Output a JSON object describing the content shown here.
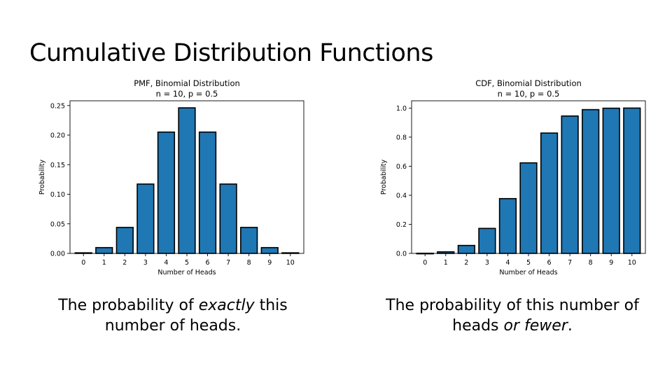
{
  "slide": {
    "title": "Cumulative Distribution Functions"
  },
  "captions": {
    "pmf": {
      "before": "The probability of ",
      "emphasis": "exactly",
      "after": " this number of heads."
    },
    "cdf": {
      "before": "The probability of this number of heads ",
      "emphasis": "or fewer",
      "after": "."
    }
  },
  "colors": {
    "bar": "#1f77b4",
    "edge": "#000000"
  },
  "chart_data": [
    {
      "id": "pmf",
      "type": "bar",
      "title": "PMF, Binomial Distribution",
      "subtitle": "n = 10, p = 0.5",
      "xlabel": "Number of Heads",
      "ylabel": "Probability",
      "categories": [
        "0",
        "1",
        "2",
        "3",
        "4",
        "5",
        "6",
        "7",
        "8",
        "9",
        "10"
      ],
      "values": [
        0.001,
        0.0098,
        0.0439,
        0.1172,
        0.2051,
        0.2461,
        0.2051,
        0.1172,
        0.0439,
        0.0098,
        0.001
      ],
      "ylim": [
        0,
        0.258
      ],
      "yticks": [
        0.0,
        0.05,
        0.1,
        0.15,
        0.2,
        0.25
      ],
      "ytick_labels": [
        "0.00",
        "0.05",
        "0.10",
        "0.15",
        "0.20",
        "0.25"
      ],
      "grid": false,
      "legend": "none"
    },
    {
      "id": "cdf",
      "type": "bar",
      "title": "CDF, Binomial Distribution",
      "subtitle": "n = 10, p = 0.5",
      "xlabel": "Number of Heads",
      "ylabel": "Probability",
      "categories": [
        "0",
        "1",
        "2",
        "3",
        "4",
        "5",
        "6",
        "7",
        "8",
        "9",
        "10"
      ],
      "values": [
        0.001,
        0.0107,
        0.0547,
        0.1719,
        0.377,
        0.623,
        0.8281,
        0.9453,
        0.9893,
        0.999,
        1.0
      ],
      "ylim": [
        0,
        1.05
      ],
      "yticks": [
        0.0,
        0.2,
        0.4,
        0.6,
        0.8,
        1.0
      ],
      "ytick_labels": [
        "0.0",
        "0.2",
        "0.4",
        "0.6",
        "0.8",
        "1.0"
      ],
      "grid": false,
      "legend": "none"
    }
  ]
}
